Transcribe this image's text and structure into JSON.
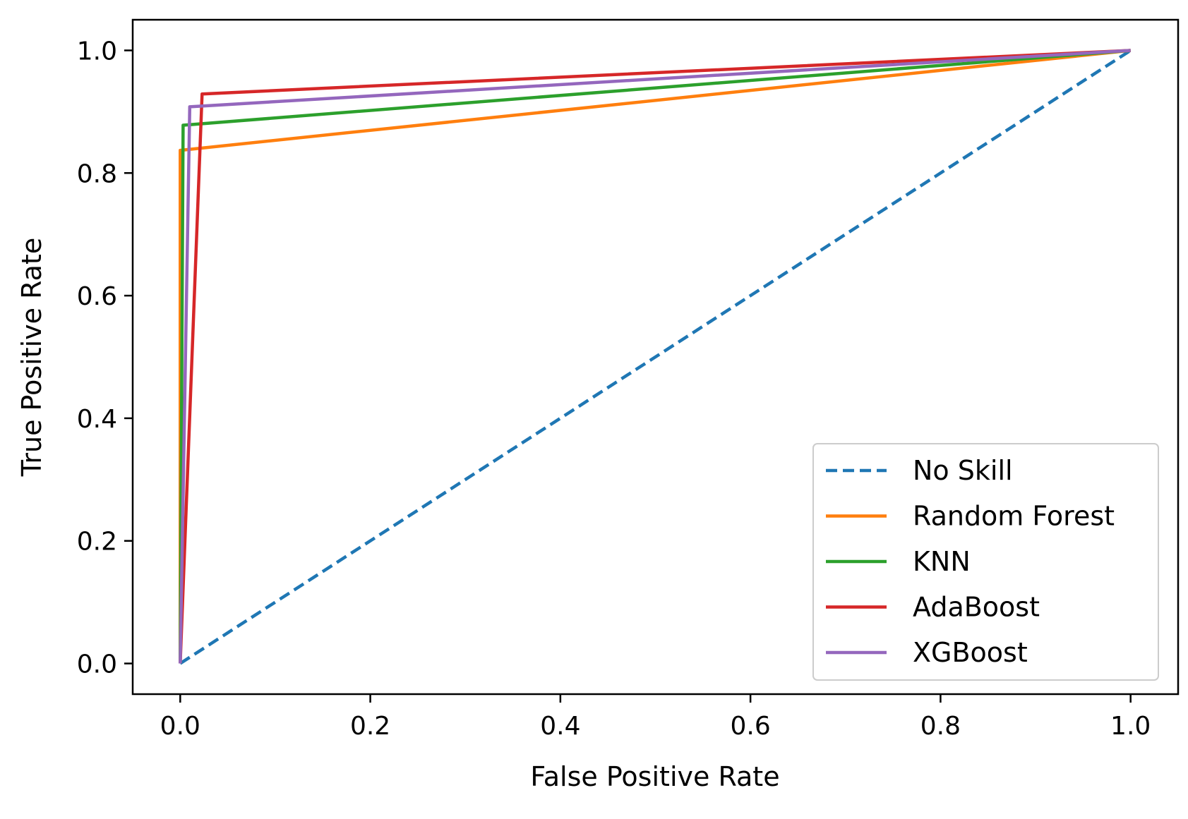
{
  "chart_data": {
    "type": "line",
    "title": "",
    "xlabel": "False Positive Rate",
    "ylabel": "True Positive Rate",
    "xlim": [
      -0.05,
      1.05
    ],
    "ylim": [
      -0.05,
      1.05
    ],
    "xticks": [
      0.0,
      0.2,
      0.4,
      0.6,
      0.8,
      1.0
    ],
    "yticks": [
      0.0,
      0.2,
      0.4,
      0.6,
      0.8,
      1.0
    ],
    "xtick_labels": [
      "0.0",
      "0.2",
      "0.4",
      "0.6",
      "0.8",
      "1.0"
    ],
    "ytick_labels": [
      "0.0",
      "0.2",
      "0.4",
      "0.6",
      "0.8",
      "1.0"
    ],
    "grid": false,
    "legend_position": "bottom-right",
    "series": [
      {
        "name": "No Skill",
        "color": "#1f77b4",
        "dashed": true,
        "x": [
          0.0,
          1.0
        ],
        "y": [
          0.0,
          1.0
        ]
      },
      {
        "name": "Random Forest",
        "color": "#ff7f0e",
        "dashed": false,
        "x": [
          0.0,
          0.0,
          1.0
        ],
        "y": [
          0.0,
          0.837,
          1.0
        ]
      },
      {
        "name": "KNN",
        "color": "#2ca02c",
        "dashed": false,
        "x": [
          0.0,
          0.003,
          1.0
        ],
        "y": [
          0.0,
          0.878,
          1.0
        ]
      },
      {
        "name": "AdaBoost",
        "color": "#d62728",
        "dashed": false,
        "x": [
          0.0,
          0.023,
          1.0
        ],
        "y": [
          0.0,
          0.929,
          1.0
        ]
      },
      {
        "name": "XGBoost",
        "color": "#9467bd",
        "dashed": false,
        "x": [
          0.0,
          0.01,
          1.0
        ],
        "y": [
          0.0,
          0.908,
          1.0
        ]
      }
    ]
  }
}
